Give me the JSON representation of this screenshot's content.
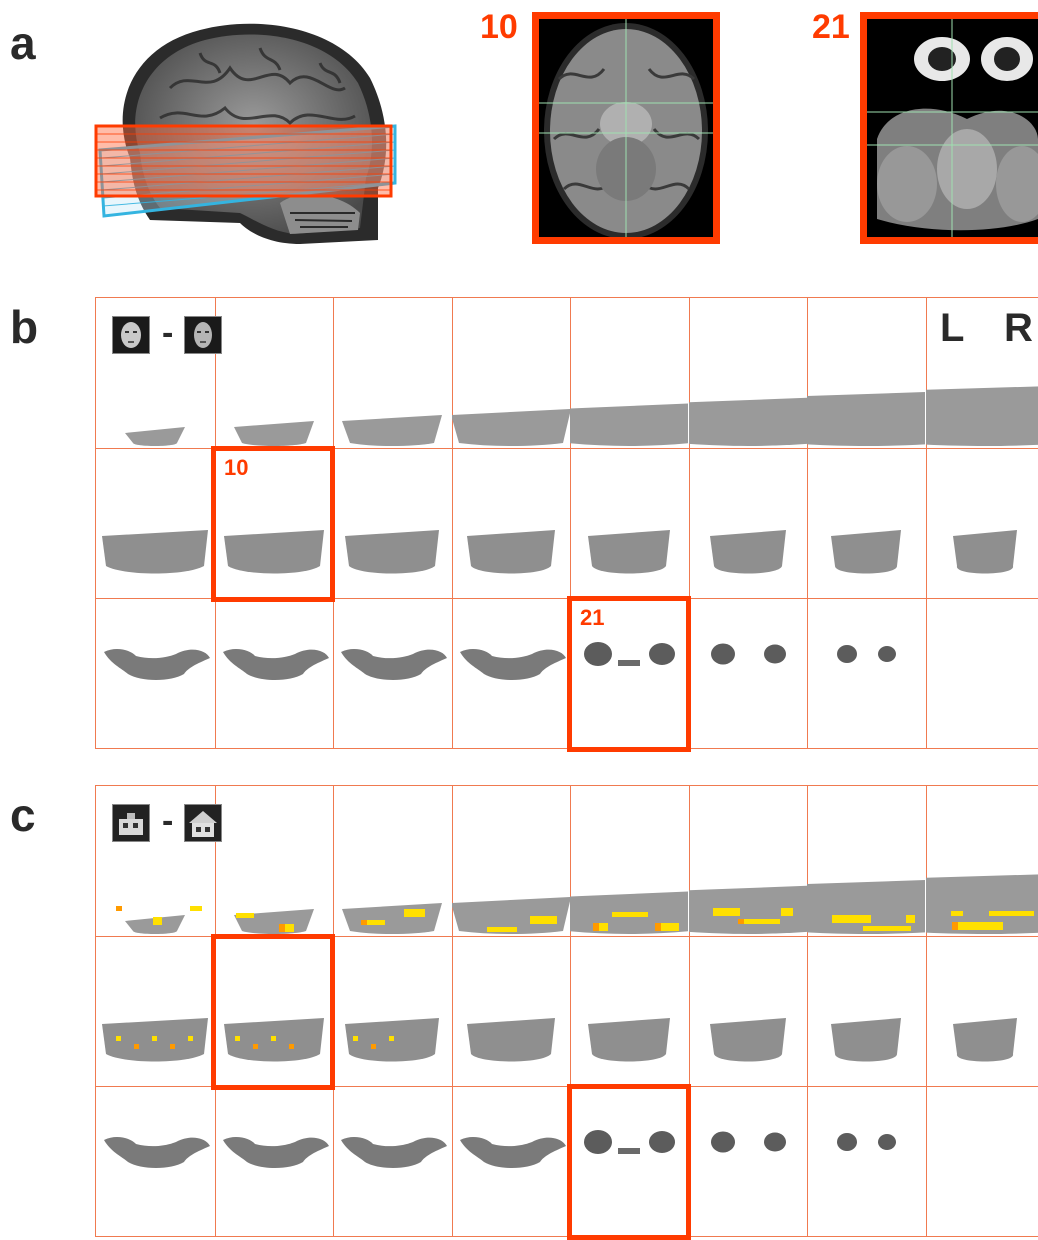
{
  "panels": {
    "a": {
      "letter": "a",
      "slice_labels": [
        "10",
        "21"
      ]
    },
    "b": {
      "letter": "b",
      "contrast_separator": "-",
      "left_label": "L",
      "right_label": "R",
      "highlight_labels": [
        "10",
        "21"
      ]
    },
    "c": {
      "letter": "c",
      "contrast_separator": "-"
    }
  },
  "colors": {
    "accent": "#ff3b00",
    "grid": "#f07a50",
    "activation": "#ffe000",
    "activation_dark": "#ff9a00",
    "coverage": "#34b4e0"
  },
  "icons": [
    "face-thumbnail-icon",
    "house-thumbnail-icon"
  ]
}
